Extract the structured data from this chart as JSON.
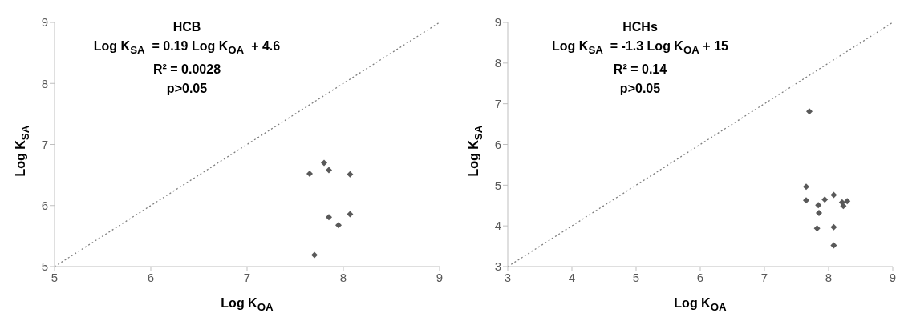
{
  "chart_data": [
    {
      "type": "scatter",
      "title": "HCB",
      "xlabel": "Log K$_{OA}$",
      "ylabel": "Log K$_{SA}$",
      "xlim": [
        5,
        9
      ],
      "ylim": [
        5,
        9
      ],
      "xticks": [
        5,
        6,
        7,
        8,
        9
      ],
      "yticks": [
        5,
        6,
        7,
        8,
        9
      ],
      "annotations": [
        "Log K$_{SA}$  = 0.19 Log K$_{OA}$  + 4.6",
        "R² = 0.0028",
        "p>0.05"
      ],
      "series": [
        {
          "color": "#595959",
          "marker": "diamond",
          "x": [
            7.65,
            7.8,
            7.85,
            8.07,
            7.85,
            8.07,
            7.95,
            7.7
          ],
          "values": [
            6.52,
            6.7,
            6.58,
            6.51,
            5.81,
            5.86,
            5.68,
            5.19
          ]
        },
        {
          "type": "line",
          "color": "#7f7f7f",
          "line_style": "dotted",
          "x": [
            5,
            9
          ],
          "values": [
            5,
            9
          ]
        }
      ]
    },
    {
      "type": "scatter",
      "title": "HCHs",
      "xlabel": "Log K$_{OA}$",
      "ylabel": "Log K$_{SA}$",
      "xlim": [
        3,
        9
      ],
      "ylim": [
        3,
        9
      ],
      "xticks": [
        3,
        4,
        5,
        6,
        7,
        8,
        9
      ],
      "yticks": [
        3,
        4,
        5,
        6,
        7,
        8,
        9
      ],
      "annotations": [
        "Log K$_{SA}$  = -1.3 Log K$_{OA}$ + 15",
        "R² = 0.14",
        "p>0.05"
      ],
      "series": [
        {
          "color": "#595959",
          "marker": "diamond",
          "x": [
            7.7,
            7.65,
            7.65,
            7.84,
            7.85,
            7.94,
            8.08,
            8.21,
            8.23,
            8.29,
            7.82,
            8.08,
            8.08
          ],
          "values": [
            6.81,
            4.96,
            4.63,
            4.51,
            4.32,
            4.65,
            4.76,
            4.58,
            4.49,
            4.61,
            3.94,
            3.97,
            3.52
          ]
        },
        {
          "type": "line",
          "color": "#7f7f7f",
          "line_style": "dotted",
          "x": [
            3,
            9
          ],
          "values": [
            3,
            9
          ]
        }
      ]
    }
  ]
}
